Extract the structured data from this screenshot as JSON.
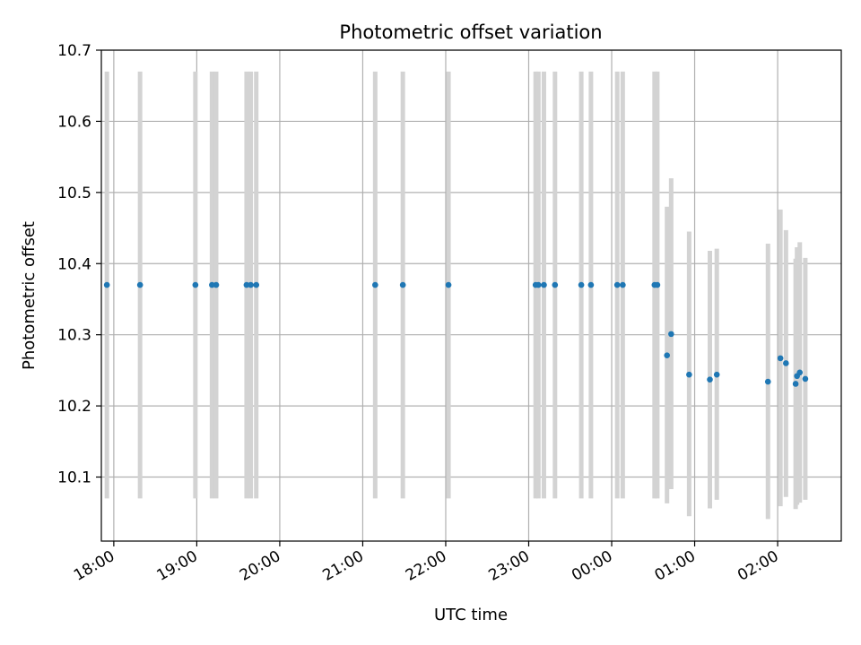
{
  "chart_data": {
    "type": "scatter",
    "title": "Photometric offset variation",
    "xlabel": "UTC time",
    "ylabel": "Photometric offset",
    "x_unit": "time",
    "xlim": [
      "17:51",
      "02:46"
    ],
    "ylim": [
      10.01,
      10.7
    ],
    "x_ticks": [
      "18:00",
      "19:00",
      "20:00",
      "21:00",
      "22:00",
      "23:00",
      "00:00",
      "01:00",
      "02:00"
    ],
    "y_ticks": [
      "10.1",
      "10.2",
      "10.3",
      "10.4",
      "10.5",
      "10.6",
      "10.7"
    ],
    "grid": true,
    "colors": {
      "point": "#1f77b4",
      "errorbar": "#d3d3d3",
      "grid": "#b0b0b0"
    },
    "series": [
      {
        "points": [
          {
            "x": "17:55",
            "y": 10.37,
            "ylow": 10.07,
            "yhigh": 10.67
          },
          {
            "x": "18:19",
            "y": 10.37,
            "ylow": 10.07,
            "yhigh": 10.67
          },
          {
            "x": "18:59",
            "y": 10.37,
            "ylow": 10.07,
            "yhigh": 10.67
          },
          {
            "x": "19:11",
            "y": 10.37,
            "ylow": 10.07,
            "yhigh": 10.67
          },
          {
            "x": "19:14",
            "y": 10.37,
            "ylow": 10.07,
            "yhigh": 10.67
          },
          {
            "x": "19:36",
            "y": 10.37,
            "ylow": 10.07,
            "yhigh": 10.67
          },
          {
            "x": "19:39",
            "y": 10.37,
            "ylow": 10.07,
            "yhigh": 10.67
          },
          {
            "x": "19:43",
            "y": 10.37,
            "ylow": 10.07,
            "yhigh": 10.67
          },
          {
            "x": "21:09",
            "y": 10.37,
            "ylow": 10.07,
            "yhigh": 10.67
          },
          {
            "x": "21:29",
            "y": 10.37,
            "ylow": 10.07,
            "yhigh": 10.67
          },
          {
            "x": "22:02",
            "y": 10.37,
            "ylow": 10.07,
            "yhigh": 10.67
          },
          {
            "x": "23:05",
            "y": 10.37,
            "ylow": 10.07,
            "yhigh": 10.67
          },
          {
            "x": "23:07",
            "y": 10.37,
            "ylow": 10.07,
            "yhigh": 10.67
          },
          {
            "x": "23:11",
            "y": 10.37,
            "ylow": 10.07,
            "yhigh": 10.67
          },
          {
            "x": "23:19",
            "y": 10.37,
            "ylow": 10.07,
            "yhigh": 10.67
          },
          {
            "x": "23:38",
            "y": 10.37,
            "ylow": 10.07,
            "yhigh": 10.67
          },
          {
            "x": "23:45",
            "y": 10.37,
            "ylow": 10.07,
            "yhigh": 10.67
          },
          {
            "x": "00:04",
            "y": 10.37,
            "ylow": 10.07,
            "yhigh": 10.67
          },
          {
            "x": "00:08",
            "y": 10.37,
            "ylow": 10.07,
            "yhigh": 10.67
          },
          {
            "x": "00:31",
            "y": 10.37,
            "ylow": 10.07,
            "yhigh": 10.67
          },
          {
            "x": "00:33",
            "y": 10.37,
            "ylow": 10.07,
            "yhigh": 10.67
          },
          {
            "x": "00:40",
            "y": 10.271,
            "ylow": 10.063,
            "yhigh": 10.48
          },
          {
            "x": "00:43",
            "y": 10.301,
            "ylow": 10.083,
            "yhigh": 10.52
          },
          {
            "x": "00:56",
            "y": 10.244,
            "ylow": 10.045,
            "yhigh": 10.445
          },
          {
            "x": "01:11",
            "y": 10.237,
            "ylow": 10.056,
            "yhigh": 10.418
          },
          {
            "x": "01:16",
            "y": 10.244,
            "ylow": 10.068,
            "yhigh": 10.421
          },
          {
            "x": "01:53",
            "y": 10.234,
            "ylow": 10.041,
            "yhigh": 10.428
          },
          {
            "x": "02:02",
            "y": 10.267,
            "ylow": 10.059,
            "yhigh": 10.476
          },
          {
            "x": "02:06",
            "y": 10.26,
            "ylow": 10.072,
            "yhigh": 10.447
          },
          {
            "x": "02:13",
            "y": 10.231,
            "ylow": 10.055,
            "yhigh": 10.407
          },
          {
            "x": "02:14",
            "y": 10.242,
            "ylow": 10.061,
            "yhigh": 10.423
          },
          {
            "x": "02:16",
            "y": 10.247,
            "ylow": 10.064,
            "yhigh": 10.43
          },
          {
            "x": "02:20",
            "y": 10.238,
            "ylow": 10.068,
            "yhigh": 10.408
          }
        ]
      }
    ]
  }
}
